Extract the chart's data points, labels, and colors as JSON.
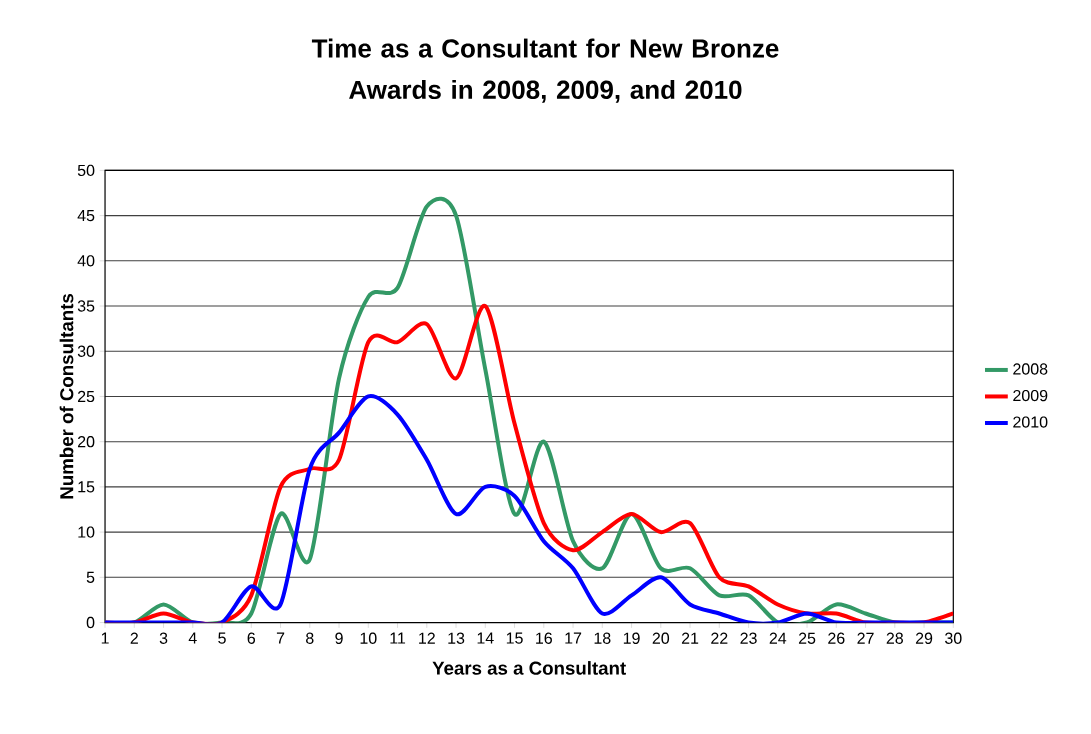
{
  "chart_data": {
    "type": "line",
    "title": "Time as a Consultant for New Bronze Awards in 2008, 2009, and 2010",
    "xlabel": "Years as a Consultant",
    "ylabel": "Number of Consultants",
    "categories": [
      "1",
      "2",
      "3",
      "4",
      "5",
      "6",
      "7",
      "8",
      "9",
      "10",
      "11",
      "12",
      "13",
      "14",
      "15",
      "16",
      "17",
      "18",
      "19",
      "20",
      "21",
      "22",
      "23",
      "24",
      "25",
      "26",
      "27",
      "28",
      "29",
      "30"
    ],
    "series": [
      {
        "name": "2008",
        "color": "#339966",
        "values": [
          0,
          0,
          2,
          0,
          0,
          1,
          12,
          7,
          27,
          36,
          37,
          46,
          45,
          28,
          12,
          20,
          9,
          6,
          12,
          6,
          6,
          3,
          3,
          0,
          0,
          2,
          1,
          0,
          0,
          0
        ]
      },
      {
        "name": "2009",
        "color": "#ff0000",
        "values": [
          0,
          0,
          1,
          0,
          0,
          3,
          15,
          17,
          18,
          31,
          31,
          33,
          27,
          35,
          22,
          11,
          8,
          10,
          12,
          10,
          11,
          5,
          4,
          2,
          1,
          1,
          0,
          0,
          0,
          1
        ]
      },
      {
        "name": "2010",
        "color": "#0000ff",
        "values": [
          0,
          0,
          0,
          0,
          0,
          4,
          2,
          17,
          21,
          25,
          23,
          18,
          12,
          15,
          14,
          9,
          6,
          1,
          3,
          5,
          2,
          1,
          0,
          0,
          1,
          0,
          0,
          0,
          0,
          0
        ]
      }
    ],
    "ylim": [
      0,
      50
    ],
    "yticks": [
      0,
      5,
      10,
      15,
      20,
      25,
      30,
      35,
      40,
      45,
      50
    ],
    "grid": "y",
    "legend": "right",
    "marker": "none",
    "line_style": "solid"
  }
}
